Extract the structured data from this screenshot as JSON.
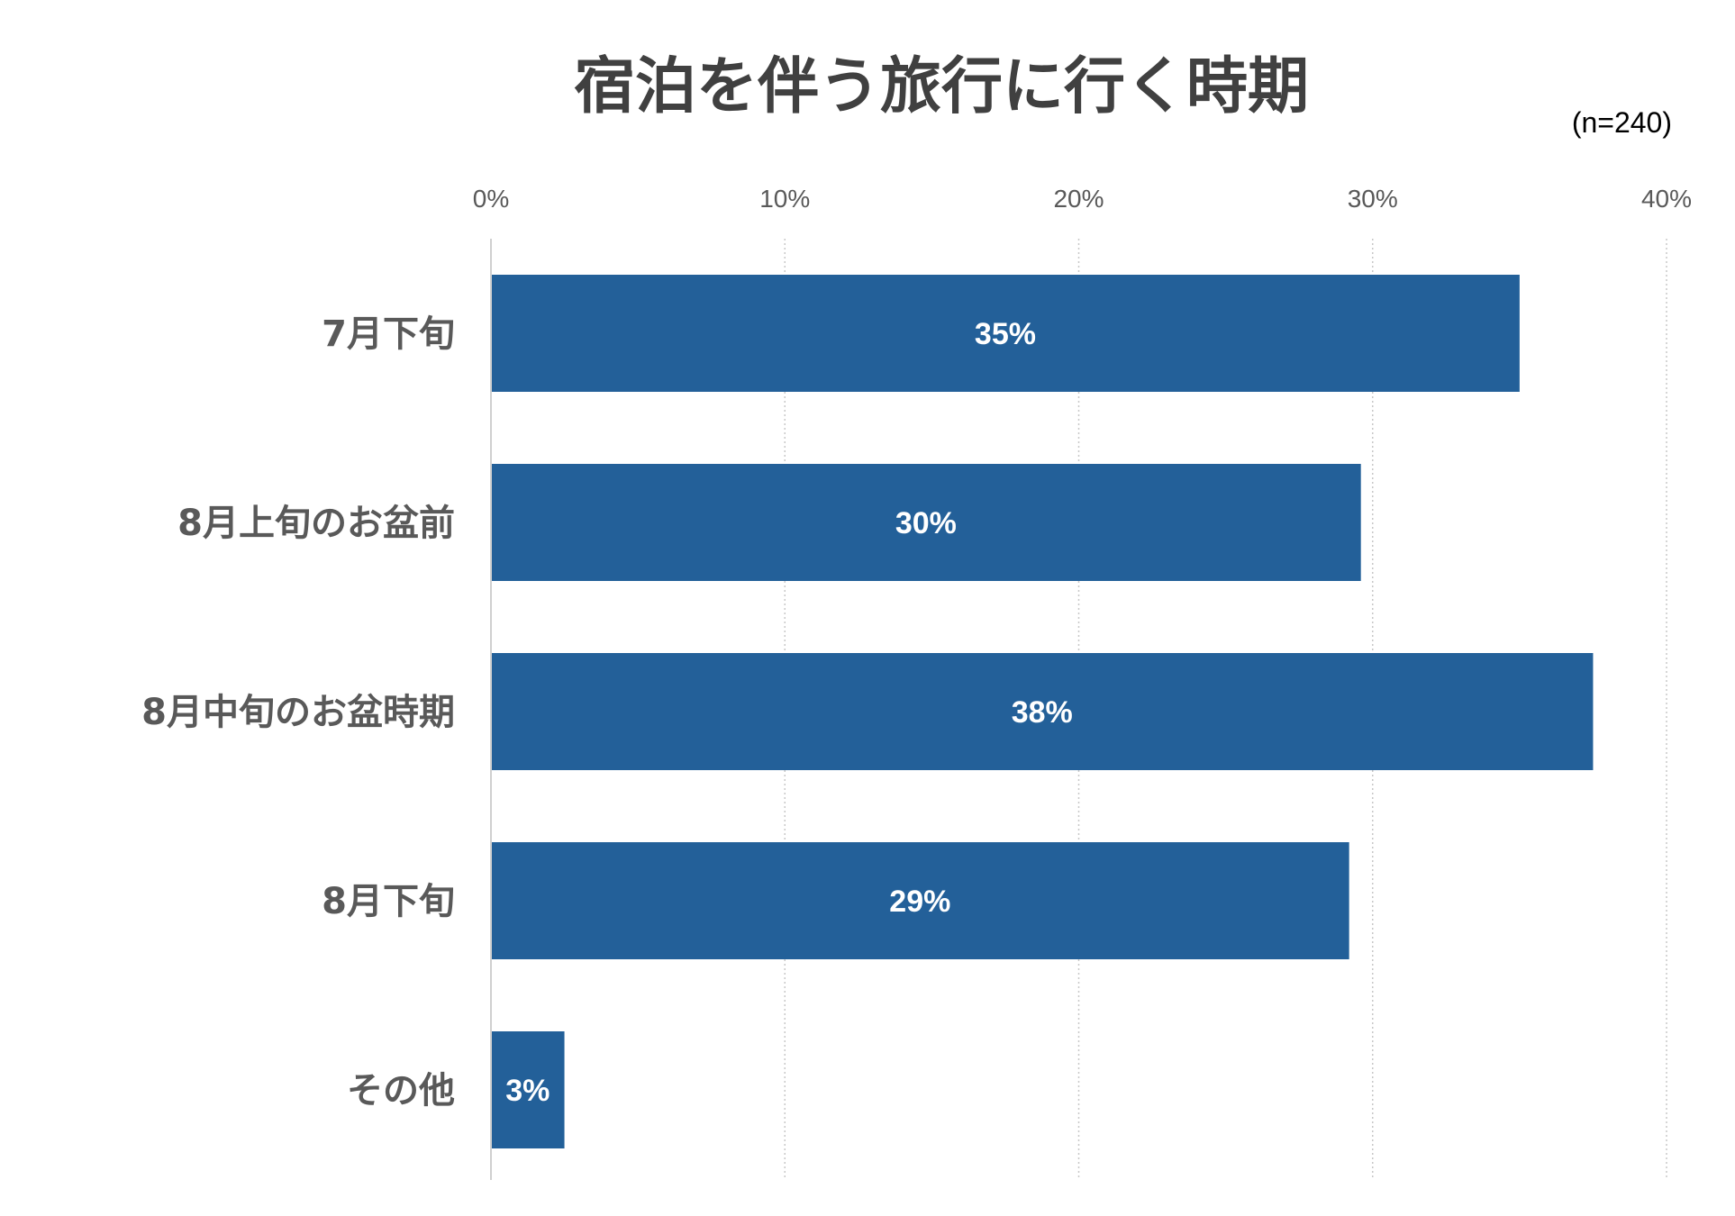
{
  "chart_data": {
    "type": "bar",
    "orientation": "horizontal",
    "title": "宿泊を伴う旅行に行く時期",
    "note": "(n=240)",
    "categories": [
      "7月下旬",
      "8月上旬のお盆前",
      "8月中旬のお盆時期",
      "8月下旬",
      "その他"
    ],
    "values": [
      35,
      29.6,
      37.5,
      29.2,
      2.5
    ],
    "value_labels": [
      "35%",
      "30%",
      "38%",
      "29%",
      "3%"
    ],
    "xlim": [
      0,
      40
    ],
    "ticks": [
      0,
      10,
      20,
      30,
      40
    ],
    "tick_labels": [
      "0%",
      "10%",
      "20%",
      "30%",
      "40%"
    ],
    "axis_position": "top",
    "grid": true,
    "legend": "none",
    "colors": {
      "bar": "#236099",
      "gridline": "#c8c8c8",
      "axis": "#d0d0d0",
      "category_text": "#595959",
      "tick_text": "#595959",
      "value_text": "#ffffff"
    }
  }
}
